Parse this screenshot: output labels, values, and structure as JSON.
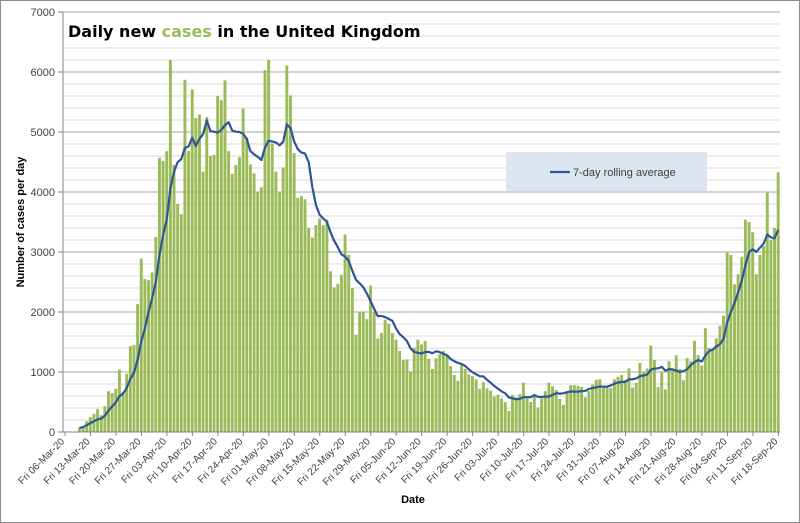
{
  "chart_data": {
    "type": "bar",
    "title_parts": [
      "Daily new ",
      "cases",
      " in the United Kingdom"
    ],
    "xlabel": "Date",
    "ylabel": "Number of cases per day",
    "ylim": [
      0,
      7000
    ],
    "yticks": [
      0,
      1000,
      2000,
      3000,
      4000,
      5000,
      6000,
      7000
    ],
    "minor_grid_step": 200,
    "grid": true,
    "legend_placement": "right-middle",
    "start_date": "2020-03-06",
    "xtick_labels": [
      "Fri 06-Mar-20",
      "Fri 13-Mar-20",
      "Fri 20-Mar-20",
      "Fri 27-Mar-20",
      "Fri 03-Apr-20",
      "Fri 10-Apr-20",
      "Fri 17-Apr-20",
      "Fri 24-Apr-20",
      "Fri 01-May-20",
      "Fri 08-May-20",
      "Fri 15-May-20",
      "Fri 22-May-20",
      "Fri 29-May-20",
      "Fri 05-Jun-20",
      "Fri 12-Jun-20",
      "Fri 19-Jun-20",
      "Fri 26-Jun-20",
      "Fri 03-Jul-20",
      "Fri 10-Jul-20",
      "Fri 17-Jul-20",
      "Fri 24-Jul-20",
      "Fri 31-Jul-20",
      "Fri 07-Aug-20",
      "Fri 14-Aug-20",
      "Fri 21-Aug-20",
      "Fri 28-Aug-20",
      "Fri 04-Sep-20",
      "Fri 11-Sep-20",
      "Fri 18-Sep-20"
    ],
    "series": [
      {
        "name": "Daily new cases",
        "kind": "bar",
        "color": "#9bbb59",
        "values": [
          0,
          0,
          0,
          0,
          70,
          90,
          180,
          250,
          300,
          380,
          280,
          430,
          680,
          650,
          720,
          1040,
          670,
          970,
          1430,
          1450,
          2130,
          2890,
          2550,
          2530,
          2660,
          3250,
          4570,
          4520,
          4680,
          6200,
          4450,
          3800,
          3630,
          5870,
          4680,
          5710,
          5230,
          5290,
          4340,
          5250,
          4600,
          4620,
          5600,
          5530,
          5860,
          4680,
          4300,
          4450,
          4580,
          5390,
          4910,
          4460,
          4310,
          4000,
          4080,
          6030,
          6200,
          4810,
          4340,
          3990,
          4410,
          6110,
          5610,
          4650,
          3900,
          3930,
          3880,
          3400,
          3240,
          3450,
          3560,
          3450,
          3540,
          2680,
          2410,
          2470,
          2620,
          3290,
          2950,
          2400,
          1620,
          2000,
          2010,
          1880,
          2440,
          2000,
          1560,
          1650,
          1870,
          1800,
          1650,
          1540,
          1350,
          1200,
          1210,
          1000,
          1400,
          1540,
          1460,
          1520,
          1220,
          1050,
          1230,
          1300,
          1350,
          1280,
          1100,
          950,
          850,
          1120,
          1050,
          960,
          930,
          880,
          720,
          830,
          730,
          690,
          590,
          620,
          560,
          500,
          350,
          620,
          580,
          630,
          820,
          560,
          500,
          600,
          410,
          560,
          680,
          820,
          760,
          700,
          550,
          450,
          680,
          780,
          780,
          770,
          750,
          580,
          680,
          790,
          870,
          880,
          740,
          750,
          730,
          880,
          920,
          950,
          870,
          1060,
          740,
          820,
          1150,
          1000,
          1060,
          1440,
          1200,
          750,
          1000,
          710,
          1180,
          1030,
          1280,
          1050,
          860,
          1230,
          1180,
          1520,
          1280,
          1110,
          1730,
          1400,
          1380,
          1560,
          1770,
          1940,
          2990,
          2950,
          2460,
          2630,
          2920,
          3540,
          3500,
          3330,
          2630,
          2950,
          3100,
          3990,
          3200,
          3400,
          4330
        ]
      },
      {
        "name": "7-day rolling average",
        "kind": "line",
        "color": "#2f5597",
        "window": 7
      }
    ]
  }
}
